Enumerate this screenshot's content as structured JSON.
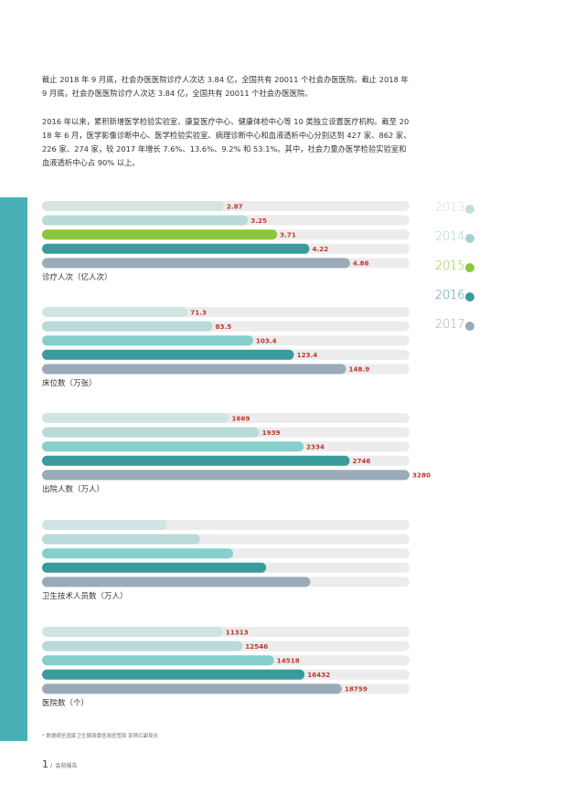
{
  "text": {
    "para1": "截止 2018 年 9 月底，社会办医医院诊疗人次达 3.84 亿，全国共有 20011 个社会办医医院。截止 2018 年 9 月底，社会办医医院诊疗人次达 3.84 亿，全国共有 20011 个社会办医医院。",
    "para2": "2016 年以来，累积新增医学检验实验室、康复医疗中心、健康体检中心等 10 类独立设置医疗机构。截至 2018 年 6 月，医学影像诊断中心、医学检验实验室、病理诊断中心和血液透析中心分别达到 427 家、862 家、226 家、274 家，较 2017 年增长 7.6%、13.6%、9.2% 和 53.1%。其中，社会力量办医学检验实验室和血液透析中心占 90% 以上。",
    "footnote": "* 数据摘至国家卫生健康委医政医管局 郭燕红副局长",
    "page_number": "1",
    "page_slash": "/",
    "page_title": "会前报告"
  },
  "colors": {
    "track": "#ececec",
    "value_label": "#c0392b",
    "left_bar": "#4ab0b8",
    "series": [
      "#d5e4dc",
      "#b9dad8",
      "#8cc63f",
      "#3a9b9c",
      "#9aaab8"
    ],
    "series_bright": [
      "#cfe4e3",
      "#b9dad8",
      "#86d0cc",
      "#3a9b9c",
      "#9aaab8"
    ]
  },
  "legend": [
    {
      "year": "2013",
      "color": "#c5dfe0",
      "icon": "circle-badge-icon"
    },
    {
      "year": "2014",
      "color": "#a9cfd4",
      "icon": "circle-badge-icon"
    },
    {
      "year": "2015",
      "color": "#8cc63f",
      "icon": "circle-badge-icon"
    },
    {
      "year": "2016",
      "color": "#3a9b9c",
      "icon": "circle-badge-icon"
    },
    {
      "year": "2017",
      "color": "#9aaab8",
      "icon": "circle-badge-icon"
    }
  ],
  "chart_data": [
    {
      "type": "bar",
      "title": "诊疗人次（亿人次）",
      "series_names": [
        "2013",
        "2014",
        "2015",
        "2016",
        "2017"
      ],
      "values": [
        2.87,
        3.25,
        3.71,
        4.22,
        4.86
      ],
      "labels": [
        "2.87",
        "3.25",
        "3.71",
        "4.22",
        "4.86"
      ],
      "xlim": [
        0,
        5.8
      ],
      "palette": "series"
    },
    {
      "type": "bar",
      "title": "床位数（万张）",
      "series_names": [
        "2013",
        "2014",
        "2015",
        "2016",
        "2017"
      ],
      "values": [
        71.3,
        83.5,
        103.4,
        123.4,
        148.9
      ],
      "labels": [
        "71.3",
        "83.5",
        "103.4",
        "123.4",
        "148.9"
      ],
      "xlim": [
        0,
        180
      ],
      "palette": "series_bright"
    },
    {
      "type": "bar",
      "title": "出院人数（万人）",
      "series_names": [
        "2013",
        "2014",
        "2015",
        "2016",
        "2017"
      ],
      "values": [
        1669,
        1939,
        2334,
        2746,
        3280
      ],
      "labels": [
        "1669",
        "1939",
        "2334",
        "2746",
        "3280"
      ],
      "xlim": [
        0,
        3280
      ],
      "palette": "series_bright"
    },
    {
      "type": "bar",
      "title": "卫生技术人员数（万人）",
      "series_names": [
        "2013",
        "2014",
        "2015",
        "2016",
        "2017"
      ],
      "values": [
        0.34,
        0.43,
        0.52,
        0.61,
        0.73
      ],
      "labels": [
        "",
        "",
        "",
        "",
        ""
      ],
      "xlim": [
        0,
        1.0
      ],
      "palette": "series_bright"
    },
    {
      "type": "bar",
      "title": "医院数（个）",
      "series_names": [
        "2013",
        "2014",
        "2015",
        "2016",
        "2017"
      ],
      "values": [
        11313,
        12546,
        14518,
        16432,
        18759
      ],
      "labels": [
        "11313",
        "12546",
        "14518",
        "16432",
        "18759"
      ],
      "xlim": [
        0,
        23000
      ],
      "palette": "series_bright"
    }
  ]
}
